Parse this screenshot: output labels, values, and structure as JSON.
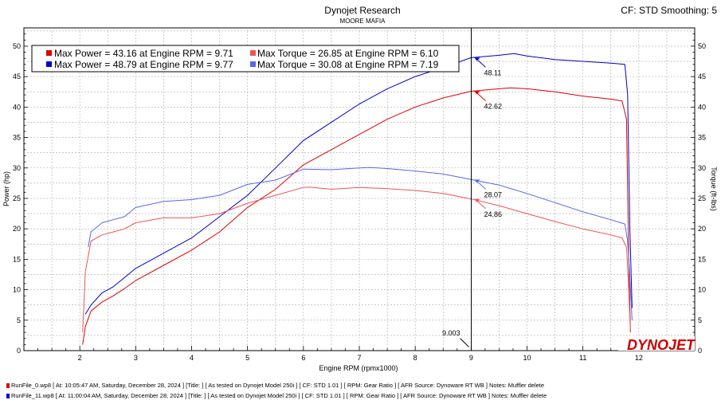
{
  "header": {
    "title": "Dynojet Research",
    "subtitle": "MOORE MAFIA",
    "cf_label": "CF: STD Smoothing: 5"
  },
  "logo_text": "DYNOJET",
  "colors": {
    "run0_power": "#dd0000",
    "run0_torque": "#ee5555",
    "run1_power": "#0000cc",
    "run1_torque": "#5566ee",
    "grid": "#aaaaaa",
    "cursor": "#000000"
  },
  "legend": {
    "rows": [
      {
        "power": "Max Power = 43.16 at Engine RPM = 9.71",
        "torque": "Max Torque = 26.85 at Engine RPM = 6.10"
      },
      {
        "power": "Max Power = 48.79 at Engine RPM = 9.77",
        "torque": "Max Torque = 30.08 at Engine RPM = 7.19"
      }
    ]
  },
  "cursor": {
    "rpm": 9.003,
    "label": "9.003"
  },
  "markers": [
    {
      "series": "run1_power",
      "label": "48.11"
    },
    {
      "series": "run0_power",
      "label": "42.62"
    },
    {
      "series": "run1_torque",
      "label": "28.07"
    },
    {
      "series": "run0_torque",
      "label": "24.86"
    }
  ],
  "footer": [
    "RunFile_0.wp8 [  At: 10:05:47 AM, Saturday, December 28, 2024 ]  [Title:  ]  [ As tested on Dynojet Model 250i ]  [ CF: STD 1.01 ]  [ RPM: Gear Ratio ]  [ AFR Source: Dynoware RT WB ] Notes: Muffler delete",
    "RunFile_11.wp8 [  At: 11:00:04 AM, Saturday, December 28, 2024 ]  [Title:  ]  [ As tested on Dynojet Model 250i ]  [ CF: STD 1.01 ]  [ RPM: Gear Ratio ]  [ AFR Source: Dynoware RT WB ] Notes: Muffler delete"
  ],
  "chart_data": {
    "type": "line",
    "xlabel": "Engine RPM (rpmx1000)",
    "ylabel_left": "Power (hp)",
    "ylabel_right": "Torque (ft-lbs)",
    "xlim": [
      1,
      13
    ],
    "ylim": [
      0,
      53
    ],
    "x_ticks": [
      2,
      3,
      4,
      5,
      6,
      7,
      8,
      9,
      10,
      11,
      12
    ],
    "y_ticks": [
      0,
      5,
      10,
      15,
      20,
      25,
      30,
      35,
      40,
      45,
      50
    ],
    "series": [
      {
        "name": "Max Power run 0",
        "key": "run0_power",
        "x": [
          2.05,
          2.1,
          2.2,
          2.4,
          2.6,
          2.8,
          3.0,
          3.5,
          4.0,
          4.5,
          5.0,
          5.5,
          6.0,
          6.5,
          7.0,
          7.5,
          8.0,
          8.5,
          9.0,
          9.5,
          9.71,
          10.0,
          10.5,
          11.0,
          11.5,
          11.7,
          11.78,
          11.82,
          11.85
        ],
        "values": [
          1.0,
          4.0,
          6.5,
          8.0,
          9.0,
          10.2,
          11.5,
          14.0,
          16.5,
          19.5,
          23.5,
          26.5,
          30.5,
          33.0,
          35.5,
          38.0,
          40.0,
          41.5,
          42.6,
          43.0,
          43.16,
          43.0,
          42.5,
          41.8,
          41.3,
          41.0,
          38.0,
          15.0,
          3.0
        ]
      },
      {
        "name": "Max Power run 11",
        "key": "run1_power",
        "x": [
          2.1,
          2.2,
          2.4,
          2.6,
          2.8,
          3.0,
          3.5,
          4.0,
          4.5,
          5.0,
          5.5,
          6.0,
          6.5,
          7.0,
          7.5,
          8.0,
          8.5,
          9.0,
          9.5,
          9.77,
          10.0,
          10.5,
          11.0,
          11.5,
          11.75,
          11.8,
          11.84,
          11.88
        ],
        "values": [
          6.0,
          7.5,
          9.5,
          10.5,
          12.0,
          13.5,
          16.0,
          18.5,
          22.0,
          25.5,
          30.0,
          34.5,
          37.5,
          40.5,
          43.0,
          45.0,
          46.5,
          48.1,
          48.5,
          48.79,
          48.4,
          47.8,
          47.5,
          47.2,
          47.0,
          42.0,
          20.0,
          7.0
        ]
      },
      {
        "name": "Max Torque run 0",
        "key": "run0_torque",
        "x": [
          2.05,
          2.1,
          2.2,
          2.4,
          2.6,
          2.8,
          3.0,
          3.5,
          4.0,
          4.5,
          5.0,
          5.5,
          6.0,
          6.1,
          6.5,
          7.0,
          7.5,
          8.0,
          8.5,
          9.0,
          9.5,
          10.0,
          10.5,
          11.0,
          11.5,
          11.7,
          11.78,
          11.82,
          11.85
        ],
        "values": [
          3.0,
          13.0,
          18.0,
          19.0,
          19.5,
          20.0,
          21.0,
          21.8,
          21.8,
          22.5,
          24.2,
          25.5,
          26.8,
          26.85,
          26.5,
          26.8,
          26.6,
          26.3,
          25.8,
          24.9,
          23.8,
          22.5,
          21.2,
          20.0,
          19.0,
          18.5,
          17.0,
          10.0,
          3.0
        ]
      },
      {
        "name": "Max Torque run 11",
        "key": "run1_torque",
        "x": [
          2.15,
          2.2,
          2.4,
          2.6,
          2.8,
          3.0,
          3.5,
          4.0,
          4.5,
          5.0,
          5.5,
          6.0,
          6.5,
          7.0,
          7.19,
          7.5,
          8.0,
          8.5,
          9.0,
          9.5,
          10.0,
          10.5,
          11.0,
          11.5,
          11.75,
          11.8,
          11.84,
          11.88
        ],
        "values": [
          17.0,
          19.5,
          21.0,
          21.5,
          22.0,
          23.5,
          24.5,
          24.8,
          25.5,
          27.3,
          28.0,
          29.8,
          29.7,
          30.0,
          30.08,
          29.9,
          29.5,
          29.0,
          28.1,
          27.2,
          25.8,
          24.3,
          22.8,
          21.5,
          20.8,
          18.0,
          12.0,
          5.0
        ]
      }
    ]
  }
}
